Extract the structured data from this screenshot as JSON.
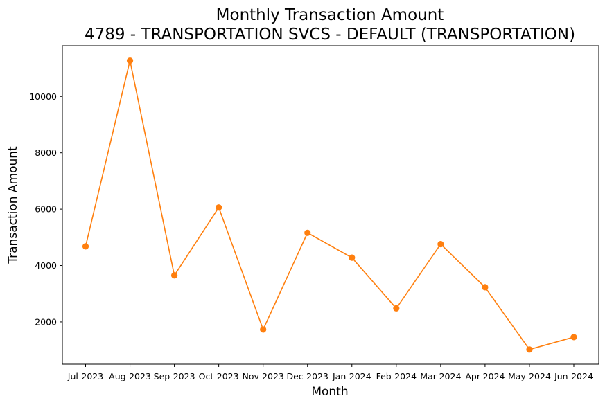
{
  "chart_data": {
    "type": "line",
    "title": "Monthly Transaction Amount",
    "subtitle": "4789 - TRANSPORTATION SVCS - DEFAULT (TRANSPORTATION)",
    "xlabel": "Month",
    "ylabel": "Transaction Amount",
    "categories": [
      "Jul-2023",
      "Aug-2023",
      "Sep-2023",
      "Oct-2023",
      "Nov-2023",
      "Dec-2023",
      "Jan-2024",
      "Feb-2024",
      "Mar-2024",
      "Apr-2024",
      "May-2024",
      "Jun-2024"
    ],
    "series": [
      {
        "values": [
          4680,
          11270,
          3650,
          6060,
          1730,
          5160,
          4280,
          2480,
          4760,
          3230,
          1020,
          1460
        ],
        "color": "#ff7f0e",
        "marker": "circle"
      }
    ],
    "yticks": [
      2000,
      4000,
      6000,
      8000,
      10000
    ],
    "ylim": [
      500,
      11800
    ],
    "grid": false,
    "legend": "none"
  }
}
